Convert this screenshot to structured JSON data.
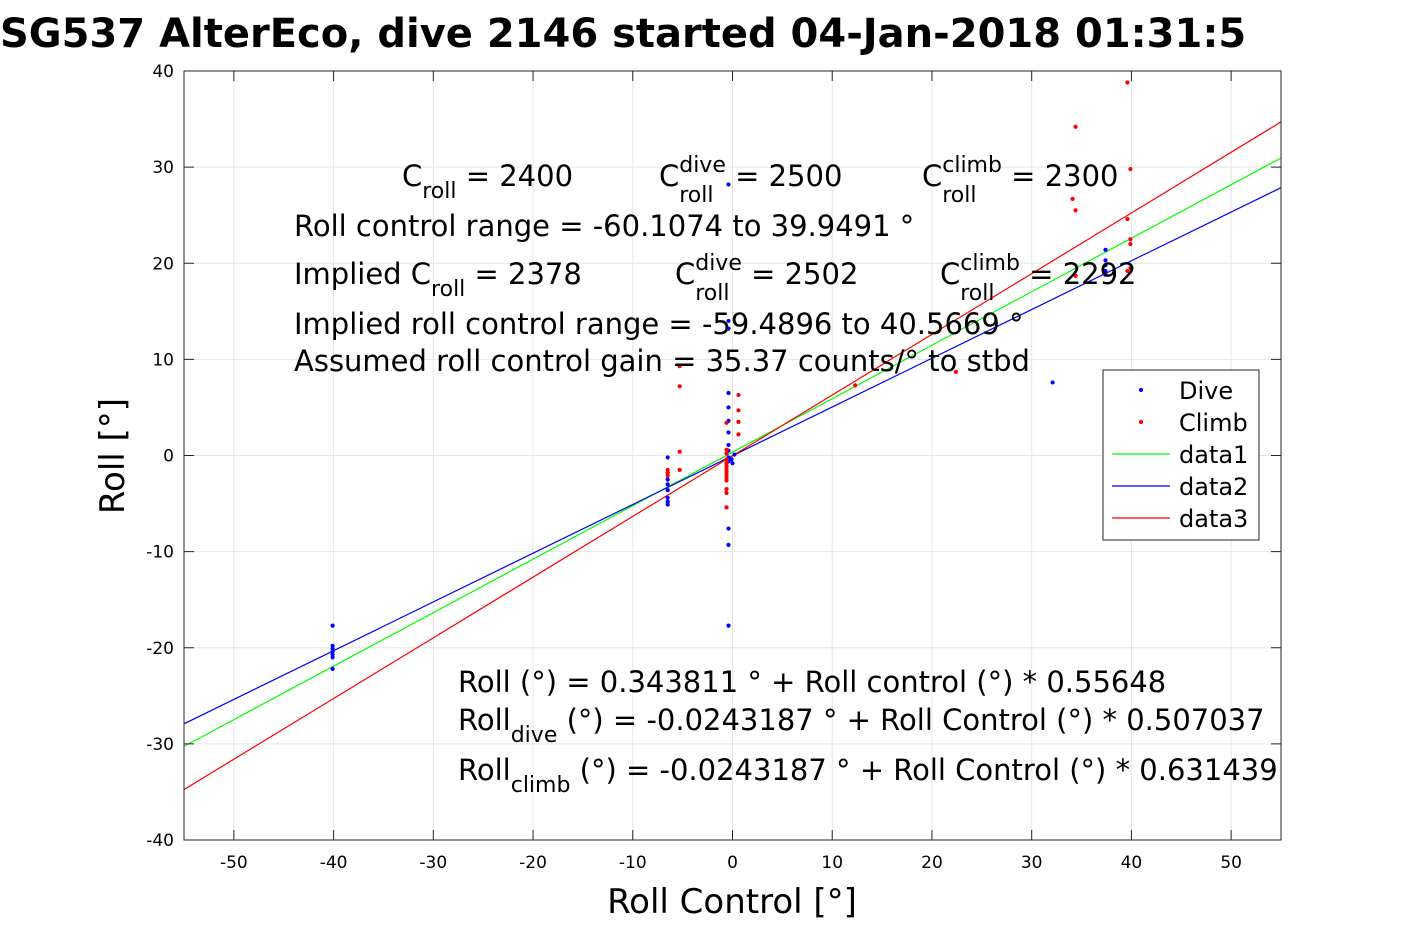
{
  "chart_data": {
    "type": "scatter",
    "title": "SG537 AlterEco, dive 2146 started 04-Jan-2018 01:31:5",
    "xlabel": "Roll Control [°]",
    "ylabel": "Roll [°]",
    "xlim": [
      -55,
      55
    ],
    "ylim": [
      -40,
      40
    ],
    "xticks": [
      -50,
      -40,
      -30,
      -20,
      -10,
      0,
      10,
      20,
      30,
      40,
      50
    ],
    "xtick_labels": [
      "-50",
      "-40",
      "-30",
      "-20",
      "-10",
      "0",
      "10",
      "20",
      "30",
      "40",
      "50"
    ],
    "yticks": [
      -40,
      -30,
      -20,
      -10,
      0,
      10,
      20,
      30,
      40
    ],
    "ytick_labels": [
      "-40",
      "-30",
      "-20",
      "-10",
      "0",
      "10",
      "20",
      "30",
      "40"
    ],
    "grid": true,
    "legend_position": "right",
    "series": [
      {
        "name": "Dive",
        "kind": "scatter",
        "color": "#0000ff",
        "points": [
          [
            -40.1,
            -17.7
          ],
          [
            -40.1,
            -19.8
          ],
          [
            -40.1,
            -20.1
          ],
          [
            -40.1,
            -20.4
          ],
          [
            -40.1,
            -20.7
          ],
          [
            -40.1,
            -21.0
          ],
          [
            -40.1,
            -22.2
          ],
          [
            -6.5,
            -0.2
          ],
          [
            -6.5,
            -1.8
          ],
          [
            -6.5,
            -2.5
          ],
          [
            -6.5,
            -3.0
          ],
          [
            -6.5,
            -3.6
          ],
          [
            -6.5,
            -4.4
          ],
          [
            -6.5,
            -4.8
          ],
          [
            -6.5,
            -5.1
          ],
          [
            -0.4,
            28.2
          ],
          [
            -0.4,
            14.0
          ],
          [
            -0.4,
            13.2
          ],
          [
            -0.4,
            6.5
          ],
          [
            -0.4,
            5.0
          ],
          [
            -0.4,
            3.6
          ],
          [
            -0.4,
            2.4
          ],
          [
            -0.4,
            1.1
          ],
          [
            -0.4,
            0.5
          ],
          [
            -0.4,
            -0.2
          ],
          [
            -0.4,
            -0.6
          ],
          [
            -0.4,
            -7.6
          ],
          [
            -0.4,
            -9.3
          ],
          [
            -0.4,
            -17.7
          ],
          [
            -0.1,
            -0.4
          ],
          [
            0.0,
            -0.8
          ],
          [
            0.2,
            0.1
          ],
          [
            32.1,
            7.6
          ],
          [
            37.4,
            21.4
          ],
          [
            37.4,
            20.3
          ],
          [
            37.4,
            19.8
          ],
          [
            37.4,
            19.2
          ],
          [
            37.4,
            18.8
          ]
        ]
      },
      {
        "name": "Climb",
        "kind": "scatter",
        "color": "#ff0000",
        "points": [
          [
            -6.5,
            -1.5
          ],
          [
            -6.5,
            -1.8
          ],
          [
            -6.5,
            -2.1
          ],
          [
            -5.3,
            9.3
          ],
          [
            -5.3,
            7.2
          ],
          [
            -5.3,
            0.4
          ],
          [
            -5.3,
            -1.5
          ],
          [
            -0.6,
            3.4
          ],
          [
            -0.6,
            0.6
          ],
          [
            -0.6,
            0.2
          ],
          [
            -0.6,
            -0.4
          ],
          [
            -0.6,
            -0.8
          ],
          [
            -0.6,
            -1.1
          ],
          [
            -0.6,
            -1.4
          ],
          [
            -0.6,
            -1.7
          ],
          [
            -0.6,
            -2.0
          ],
          [
            -0.6,
            -2.3
          ],
          [
            -0.6,
            -2.6
          ],
          [
            -0.6,
            -3.5
          ],
          [
            -0.6,
            -3.9
          ],
          [
            -0.6,
            -5.4
          ],
          [
            0.6,
            6.3
          ],
          [
            0.6,
            4.7
          ],
          [
            0.6,
            3.5
          ],
          [
            0.6,
            2.2
          ],
          [
            12.3,
            7.3
          ],
          [
            22.4,
            8.7
          ],
          [
            34.1,
            26.7
          ],
          [
            34.4,
            34.2
          ],
          [
            34.4,
            25.5
          ],
          [
            34.4,
            18.7
          ],
          [
            39.6,
            38.8
          ],
          [
            39.6,
            24.6
          ],
          [
            39.6,
            19.2
          ],
          [
            39.9,
            29.8
          ],
          [
            39.9,
            22.5
          ],
          [
            39.9,
            22.0
          ],
          [
            39.9,
            19.5
          ]
        ]
      },
      {
        "name": "data1",
        "kind": "line",
        "color": "#00ff00",
        "intercept": 0.343811,
        "slope": 0.55648
      },
      {
        "name": "data2",
        "kind": "line",
        "color": "#0000ff",
        "intercept": -0.0243187,
        "slope": 0.507037
      },
      {
        "name": "data3",
        "kind": "line",
        "color": "#ff0000",
        "intercept": -0.0243187,
        "slope": 0.631439
      }
    ],
    "annotations": {
      "c_row": {
        "c1": {
          "base": "C",
          "sub": "roll",
          "rest": " = 2400"
        },
        "c2": {
          "base": "C",
          "sup": "dive",
          "sub": "roll",
          "rest": " = 2500"
        },
        "c3": {
          "base": "C",
          "sup": "climb",
          "sub": "roll",
          "rest": " = 2300"
        }
      },
      "range_line": "Roll control range = -60.1074 to 39.9491 °",
      "implied_row": {
        "c1": {
          "base": "Implied C",
          "sub": "roll",
          "rest": " = 2378"
        },
        "c2": {
          "base": "C",
          "sup": "dive",
          "sub": "roll",
          "rest": " = 2502"
        },
        "c3": {
          "base": "C",
          "sup": "climb",
          "sub": "roll",
          "rest": " = 2292"
        }
      },
      "implied_range_line": "Implied roll control range = -59.4896 to 40.5669 °",
      "gain_line": "Assumed roll control gain = 35.37 counts/° to stbd",
      "fit_line": "Roll (°) = 0.343811 ° + Roll control (°) * 0.55648",
      "fit_dive": {
        "base": "Roll",
        "sub": "dive",
        "rest": " (°) = -0.0243187 ° + Roll Control (°) * 0.507037"
      },
      "fit_climb": {
        "base": "Roll",
        "sub": "climb",
        "rest": " (°) = -0.0243187 ° + Roll Control (°) * 0.631439"
      }
    }
  }
}
